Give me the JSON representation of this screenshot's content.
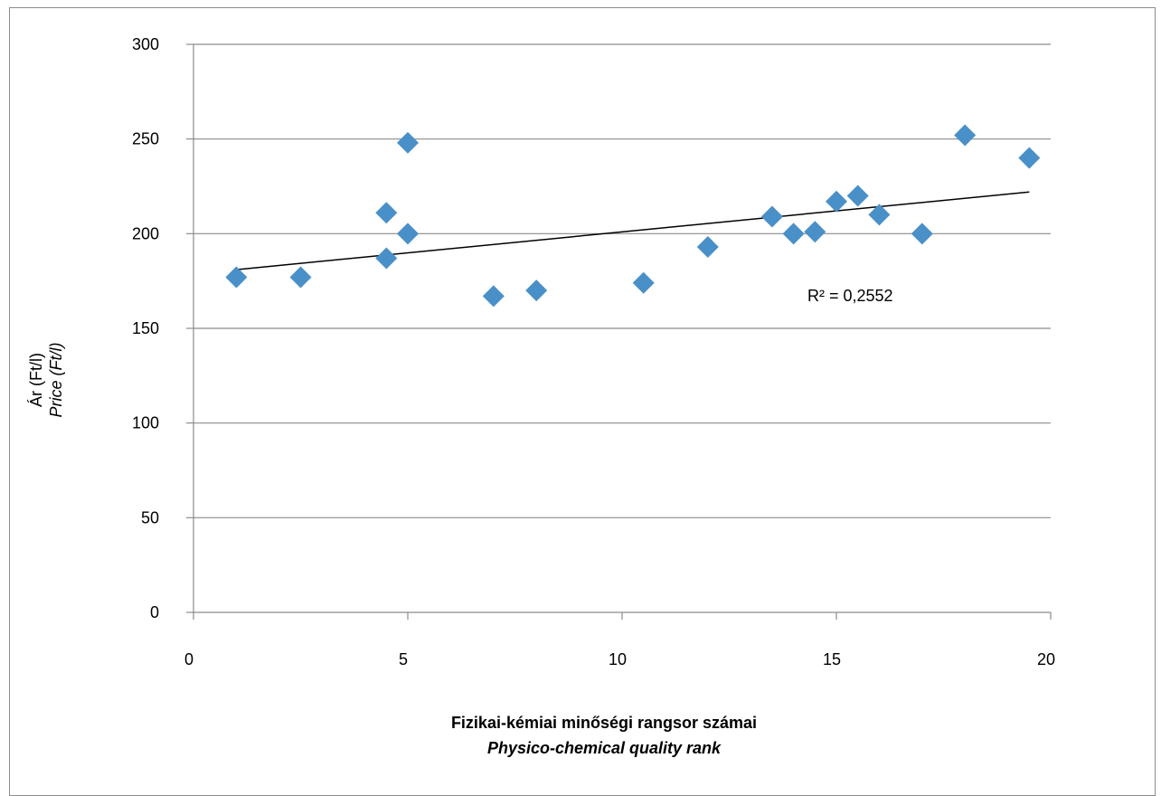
{
  "chart_data": {
    "type": "scatter",
    "title": "",
    "xlabel": "Fizikai-kémiai minőségi rangsor számai",
    "xlabel_en": "Physico-chemical quality rank",
    "ylabel": "Ár (Ft/l)",
    "ylabel_en": "Price (Ft/l)",
    "xlim": [
      0,
      20
    ],
    "ylim": [
      0,
      300
    ],
    "x_ticks": [
      0,
      5,
      10,
      15,
      20
    ],
    "y_ticks": [
      0,
      50,
      100,
      150,
      200,
      250,
      300
    ],
    "grid": "horizontal",
    "marker_color": "#4a90c8",
    "trendline": {
      "type": "linear",
      "x": [
        1,
        19.5
      ],
      "y": [
        181,
        222
      ],
      "color": "#000000"
    },
    "annotation": "R² = 0,2552",
    "series": [
      {
        "x": [
          1,
          2.5,
          4.5,
          4.5,
          5,
          5,
          7,
          8,
          10.5,
          12,
          13.5,
          14,
          14.5,
          15,
          15.5,
          16,
          17,
          18,
          19.5
        ],
        "y": [
          177,
          177,
          211,
          187,
          248,
          200,
          167,
          170,
          174,
          193,
          209,
          200,
          201,
          217,
          220,
          210,
          200,
          252,
          240
        ]
      }
    ]
  }
}
